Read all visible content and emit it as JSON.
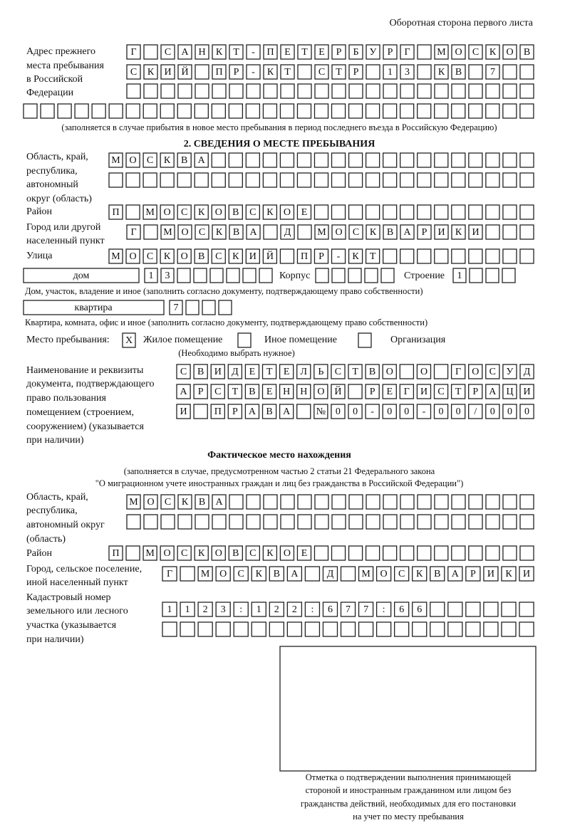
{
  "header": "Оборотная сторона первого листа",
  "previous_address": {
    "label": [
      "Адрес прежнего",
      "места пребывания",
      "в Российской",
      "Федерации"
    ],
    "cells": [
      "Г САНКТ-ПЕТЕРБУРГ МОСКОВ",
      "СКИЙ ПР-КТ СТР 13 КВ 7"
    ],
    "note": "(заполняется в случае прибытия в новое место пребывания в период последнего въезда в Российскую Федерацию)"
  },
  "section2": {
    "title": "2. СВЕДЕНИЯ О МЕСТЕ ПРЕБЫВАНИЯ",
    "region_label": [
      "Область, край,",
      "республика,",
      "автономный",
      "округ (область)"
    ],
    "region": "МОСКВА",
    "district_label": "Район",
    "district": "П МОСКОВСКОЕ",
    "city_label": [
      "Город или другой",
      "населенный пункт"
    ],
    "city": "Г МОСКВА Д МОСКВАРИКИ",
    "street_label": "Улица",
    "street": "МОСКОВСКИЙ ПР-КТ",
    "house_box": "дом",
    "house": "13",
    "building_label": "Корпус",
    "structure_label": "Строение",
    "structure": "1",
    "house_note": "Дом, участок, владение и иное (заполнить согласно документу, подтверждающему право собственности)",
    "apartment_box": "квартира",
    "apartment": "7",
    "apartment_note": "Квартира, комната, офис и иное (заполнить согласно документу, подтверждающему право собственности)",
    "stay_label": "Место пребывания:",
    "options": [
      {
        "mark": "X",
        "label": "Жилое помещение"
      },
      {
        "label": "Иное помещение"
      },
      {
        "label": "Организация"
      }
    ],
    "choose_note": "(Необходимо выбрать нужное)",
    "document_label": [
      "Наименование и реквизиты",
      "документа, подтверждающего",
      "право пользования",
      "помещением (строением,",
      "сооружением) (указывается",
      "при наличии)"
    ],
    "document": [
      "СВИДЕТЕЛЬСТВО О ГОСУД",
      "АРСТВЕННОЙ РЕГИСТРАЦИ",
      "И ПРАВА №00-00-00/000"
    ]
  },
  "actual": {
    "title": "Фактическое место нахождения",
    "note": [
      "(заполняется в случае, предусмотренном частью 2 статьи 21 Федерального закона",
      "\"О миграционном учете иностранных граждан и лиц без гражданства в Российской Федерации\")"
    ],
    "region_label": [
      "Область, край,",
      "республика,",
      "автономный округ",
      "(область)"
    ],
    "region": "МОСКВА",
    "district_label": "Район",
    "district": "П МОСКОВСКОЕ",
    "city_label": [
      "Город, сельское поселение,",
      "иной населенный пункт"
    ],
    "city": "Г МОСКВА Д МОСКВАРИКИ",
    "cadastral_label": [
      "Кадастровый номер",
      "земельного или лесного",
      "участка (указывается",
      "при наличии)"
    ],
    "cadastral": "1123:122:677:66"
  },
  "confirmation": [
    "Отметка о подтверждении выполнения принимающей",
    "стороной и иностранным гражданином или лицом без",
    "гражданства действий, необходимых для его постановки",
    "на учет по месту пребывания"
  ]
}
